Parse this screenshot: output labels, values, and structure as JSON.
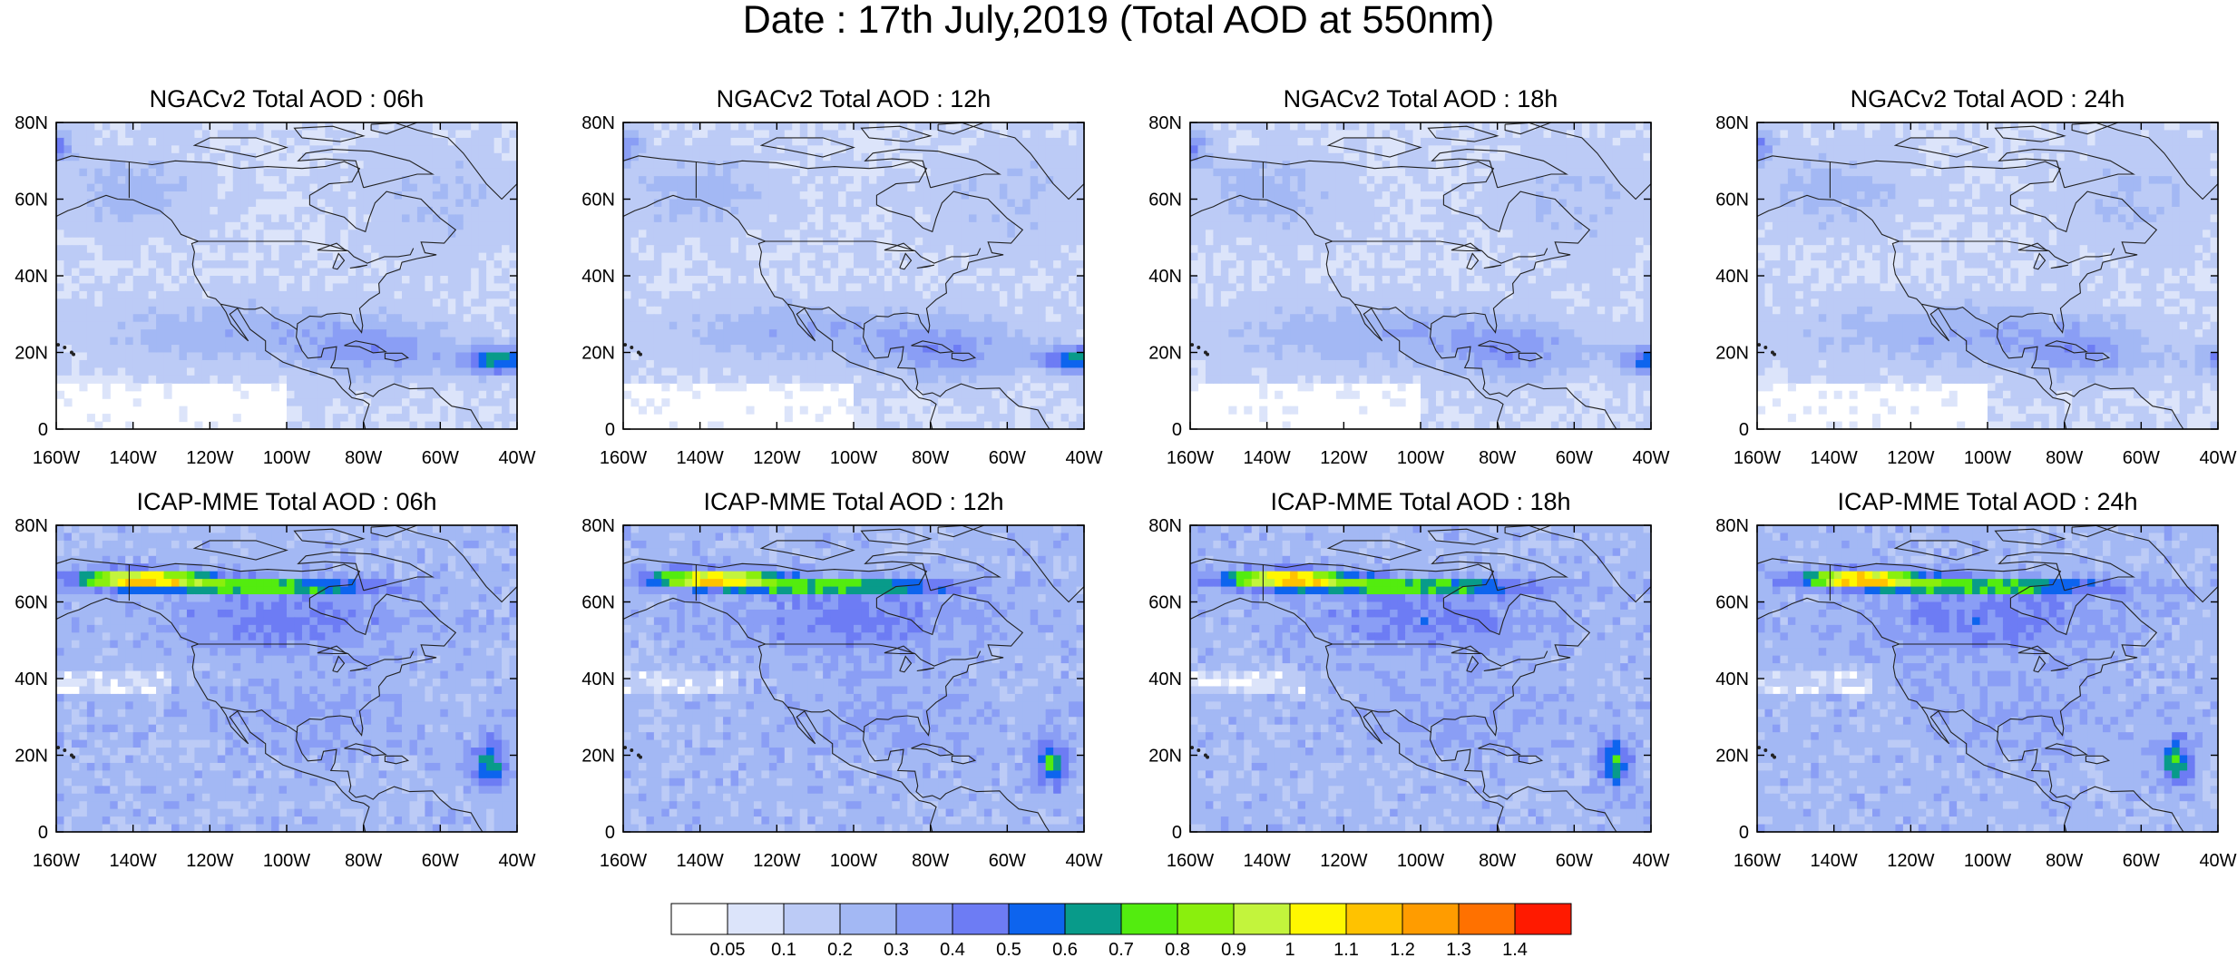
{
  "title": "Date : 17th July,2019 (Total AOD at 550nm)",
  "y_tick_labels": [
    "80N",
    "60N",
    "40N",
    "20N",
    "0"
  ],
  "x_tick_labels": [
    "160W",
    "140W",
    "120W",
    "100W",
    "80W",
    "60W",
    "40W"
  ],
  "panels": [
    {
      "title": "NGACv2 Total AOD : 06h",
      "model": "NGACv2",
      "hour": "06h"
    },
    {
      "title": "NGACv2 Total AOD : 12h",
      "model": "NGACv2",
      "hour": "12h"
    },
    {
      "title": "NGACv2 Total AOD : 18h",
      "model": "NGACv2",
      "hour": "18h"
    },
    {
      "title": "NGACv2 Total AOD : 24h",
      "model": "NGACv2",
      "hour": "24h"
    },
    {
      "title": "ICAP-MME Total AOD : 06h",
      "model": "ICAP-MME",
      "hour": "06h"
    },
    {
      "title": "ICAP-MME Total AOD : 12h",
      "model": "ICAP-MME",
      "hour": "12h"
    },
    {
      "title": "ICAP-MME Total AOD : 18h",
      "model": "ICAP-MME",
      "hour": "18h"
    },
    {
      "title": "ICAP-MME Total AOD : 24h",
      "model": "ICAP-MME",
      "hour": "24h"
    }
  ],
  "colorbar": {
    "labels": [
      "0.05",
      "0.1",
      "0.2",
      "0.3",
      "0.4",
      "0.5",
      "0.6",
      "0.7",
      "0.8",
      "0.9",
      "1",
      "1.1",
      "1.2",
      "1.3",
      "1.4"
    ],
    "colors": [
      "#ffffff",
      "#dce4fa",
      "#bccbf6",
      "#a3b8f4",
      "#8a9ef5",
      "#6d7cf4",
      "#0d64ee",
      "#089b8a",
      "#53ec0f",
      "#8aef0d",
      "#c3f43c",
      "#fff700",
      "#ffc200",
      "#ff9c00",
      "#ff7100",
      "#ff1a00"
    ]
  }
}
